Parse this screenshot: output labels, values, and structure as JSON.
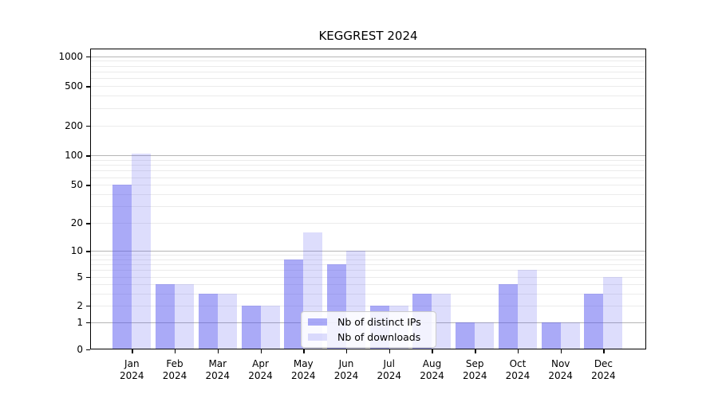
{
  "title": "KEGGREST 2024",
  "chart_data": {
    "type": "bar",
    "title": "KEGGREST 2024",
    "categories": [
      "Jan",
      "Feb",
      "Mar",
      "Apr",
      "May",
      "Jun",
      "Jul",
      "Aug",
      "Sep",
      "Oct",
      "Nov",
      "Dec"
    ],
    "category_year": "2024",
    "series": [
      {
        "name": "Nb of distinct IPs",
        "color": "rgba(85,85,240,0.5)",
        "values": [
          50,
          4,
          3,
          2,
          8,
          7,
          2,
          3,
          1,
          4,
          1,
          3
        ]
      },
      {
        "name": "Nb of downloads",
        "color": "rgba(85,85,240,0.2)",
        "values": [
          105,
          4,
          3,
          2,
          16,
          10,
          2,
          3,
          1,
          6,
          1,
          5
        ]
      }
    ],
    "xlabel": "",
    "ylabel": "",
    "y_ticks": [
      1000,
      500,
      200,
      100,
      50,
      20,
      10,
      5,
      2,
      1,
      0
    ],
    "y_scale": "log-like with linear zero",
    "ylim": [
      0,
      1200
    ],
    "grid": "major dark at 1/10/100/1000, light minors at 2-9 per decade",
    "legend_position": "lower center inside plot",
    "colors": {
      "major_grid": "#b5b5b5",
      "minor_grid": "#ebebeb",
      "axis": "#000000",
      "legend_border": "#cccccc"
    }
  }
}
